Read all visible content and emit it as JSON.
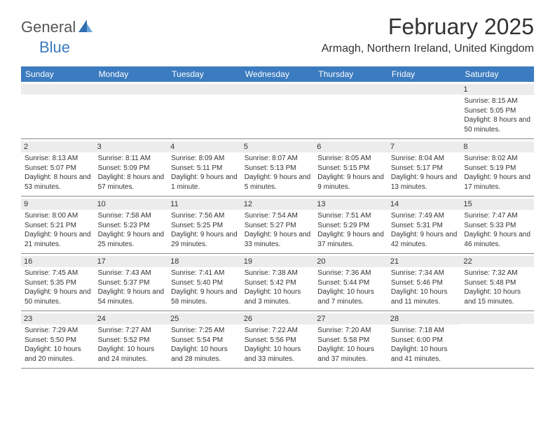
{
  "logo": {
    "textGeneral": "General",
    "textBlue": "Blue"
  },
  "title": "February 2025",
  "location": "Armagh, Northern Ireland, United Kingdom",
  "colors": {
    "headerBar": "#3b7bbf",
    "dayBar": "#ececec",
    "text": "#333333",
    "background": "#ffffff",
    "border": "#888888"
  },
  "dayNames": [
    "Sunday",
    "Monday",
    "Tuesday",
    "Wednesday",
    "Thursday",
    "Friday",
    "Saturday"
  ],
  "weeks": [
    [
      {
        "n": "",
        "sunrise": "",
        "sunset": "",
        "daylight": ""
      },
      {
        "n": "",
        "sunrise": "",
        "sunset": "",
        "daylight": ""
      },
      {
        "n": "",
        "sunrise": "",
        "sunset": "",
        "daylight": ""
      },
      {
        "n": "",
        "sunrise": "",
        "sunset": "",
        "daylight": ""
      },
      {
        "n": "",
        "sunrise": "",
        "sunset": "",
        "daylight": ""
      },
      {
        "n": "",
        "sunrise": "",
        "sunset": "",
        "daylight": ""
      },
      {
        "n": "1",
        "sunrise": "Sunrise: 8:15 AM",
        "sunset": "Sunset: 5:05 PM",
        "daylight": "Daylight: 8 hours and 50 minutes."
      }
    ],
    [
      {
        "n": "2",
        "sunrise": "Sunrise: 8:13 AM",
        "sunset": "Sunset: 5:07 PM",
        "daylight": "Daylight: 8 hours and 53 minutes."
      },
      {
        "n": "3",
        "sunrise": "Sunrise: 8:11 AM",
        "sunset": "Sunset: 5:09 PM",
        "daylight": "Daylight: 8 hours and 57 minutes."
      },
      {
        "n": "4",
        "sunrise": "Sunrise: 8:09 AM",
        "sunset": "Sunset: 5:11 PM",
        "daylight": "Daylight: 9 hours and 1 minute."
      },
      {
        "n": "5",
        "sunrise": "Sunrise: 8:07 AM",
        "sunset": "Sunset: 5:13 PM",
        "daylight": "Daylight: 9 hours and 5 minutes."
      },
      {
        "n": "6",
        "sunrise": "Sunrise: 8:05 AM",
        "sunset": "Sunset: 5:15 PM",
        "daylight": "Daylight: 9 hours and 9 minutes."
      },
      {
        "n": "7",
        "sunrise": "Sunrise: 8:04 AM",
        "sunset": "Sunset: 5:17 PM",
        "daylight": "Daylight: 9 hours and 13 minutes."
      },
      {
        "n": "8",
        "sunrise": "Sunrise: 8:02 AM",
        "sunset": "Sunset: 5:19 PM",
        "daylight": "Daylight: 9 hours and 17 minutes."
      }
    ],
    [
      {
        "n": "9",
        "sunrise": "Sunrise: 8:00 AM",
        "sunset": "Sunset: 5:21 PM",
        "daylight": "Daylight: 9 hours and 21 minutes."
      },
      {
        "n": "10",
        "sunrise": "Sunrise: 7:58 AM",
        "sunset": "Sunset: 5:23 PM",
        "daylight": "Daylight: 9 hours and 25 minutes."
      },
      {
        "n": "11",
        "sunrise": "Sunrise: 7:56 AM",
        "sunset": "Sunset: 5:25 PM",
        "daylight": "Daylight: 9 hours and 29 minutes."
      },
      {
        "n": "12",
        "sunrise": "Sunrise: 7:54 AM",
        "sunset": "Sunset: 5:27 PM",
        "daylight": "Daylight: 9 hours and 33 minutes."
      },
      {
        "n": "13",
        "sunrise": "Sunrise: 7:51 AM",
        "sunset": "Sunset: 5:29 PM",
        "daylight": "Daylight: 9 hours and 37 minutes."
      },
      {
        "n": "14",
        "sunrise": "Sunrise: 7:49 AM",
        "sunset": "Sunset: 5:31 PM",
        "daylight": "Daylight: 9 hours and 42 minutes."
      },
      {
        "n": "15",
        "sunrise": "Sunrise: 7:47 AM",
        "sunset": "Sunset: 5:33 PM",
        "daylight": "Daylight: 9 hours and 46 minutes."
      }
    ],
    [
      {
        "n": "16",
        "sunrise": "Sunrise: 7:45 AM",
        "sunset": "Sunset: 5:35 PM",
        "daylight": "Daylight: 9 hours and 50 minutes."
      },
      {
        "n": "17",
        "sunrise": "Sunrise: 7:43 AM",
        "sunset": "Sunset: 5:37 PM",
        "daylight": "Daylight: 9 hours and 54 minutes."
      },
      {
        "n": "18",
        "sunrise": "Sunrise: 7:41 AM",
        "sunset": "Sunset: 5:40 PM",
        "daylight": "Daylight: 9 hours and 58 minutes."
      },
      {
        "n": "19",
        "sunrise": "Sunrise: 7:38 AM",
        "sunset": "Sunset: 5:42 PM",
        "daylight": "Daylight: 10 hours and 3 minutes."
      },
      {
        "n": "20",
        "sunrise": "Sunrise: 7:36 AM",
        "sunset": "Sunset: 5:44 PM",
        "daylight": "Daylight: 10 hours and 7 minutes."
      },
      {
        "n": "21",
        "sunrise": "Sunrise: 7:34 AM",
        "sunset": "Sunset: 5:46 PM",
        "daylight": "Daylight: 10 hours and 11 minutes."
      },
      {
        "n": "22",
        "sunrise": "Sunrise: 7:32 AM",
        "sunset": "Sunset: 5:48 PM",
        "daylight": "Daylight: 10 hours and 15 minutes."
      }
    ],
    [
      {
        "n": "23",
        "sunrise": "Sunrise: 7:29 AM",
        "sunset": "Sunset: 5:50 PM",
        "daylight": "Daylight: 10 hours and 20 minutes."
      },
      {
        "n": "24",
        "sunrise": "Sunrise: 7:27 AM",
        "sunset": "Sunset: 5:52 PM",
        "daylight": "Daylight: 10 hours and 24 minutes."
      },
      {
        "n": "25",
        "sunrise": "Sunrise: 7:25 AM",
        "sunset": "Sunset: 5:54 PM",
        "daylight": "Daylight: 10 hours and 28 minutes."
      },
      {
        "n": "26",
        "sunrise": "Sunrise: 7:22 AM",
        "sunset": "Sunset: 5:56 PM",
        "daylight": "Daylight: 10 hours and 33 minutes."
      },
      {
        "n": "27",
        "sunrise": "Sunrise: 7:20 AM",
        "sunset": "Sunset: 5:58 PM",
        "daylight": "Daylight: 10 hours and 37 minutes."
      },
      {
        "n": "28",
        "sunrise": "Sunrise: 7:18 AM",
        "sunset": "Sunset: 6:00 PM",
        "daylight": "Daylight: 10 hours and 41 minutes."
      },
      {
        "n": "",
        "sunrise": "",
        "sunset": "",
        "daylight": ""
      }
    ]
  ]
}
